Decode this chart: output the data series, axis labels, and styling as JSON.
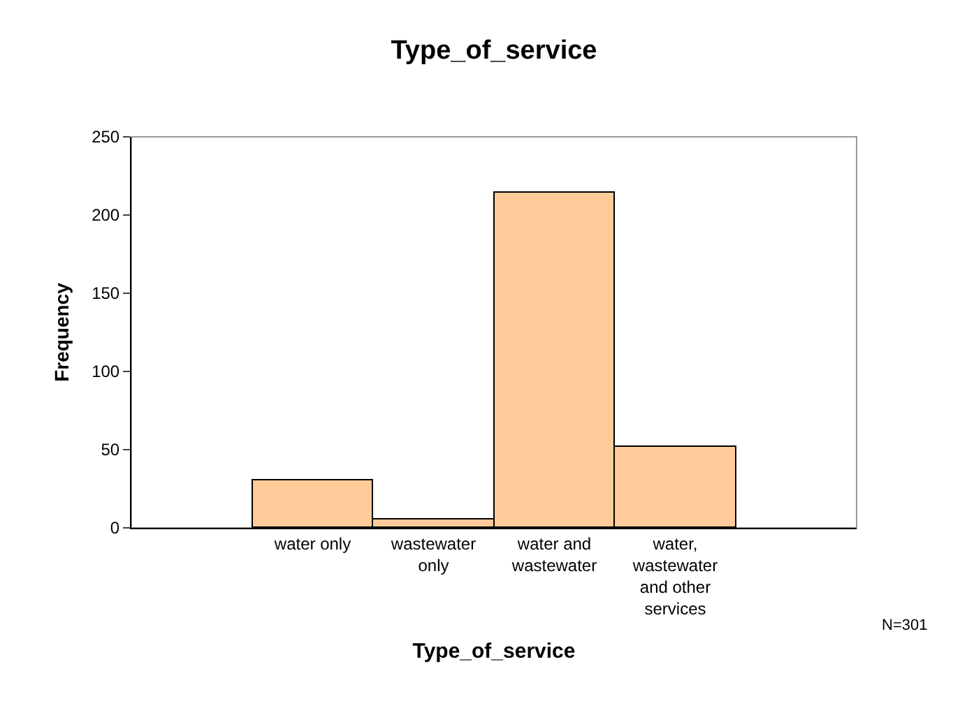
{
  "chart_data": {
    "type": "bar",
    "title": "Type_of_service",
    "xlabel": "Type_of_service",
    "ylabel": "Frequency",
    "categories": [
      null,
      "water only",
      "wastewater only",
      "water and wastewater",
      "water, wastewater and other services",
      null
    ],
    "values": [
      null,
      30,
      5,
      214,
      52,
      null
    ],
    "color": "#ffcc99",
    "ylim": [
      0,
      250
    ],
    "yticks": [
      0,
      50,
      100,
      150,
      200,
      250
    ],
    "grid": false,
    "annotations": [
      "N=301"
    ]
  }
}
